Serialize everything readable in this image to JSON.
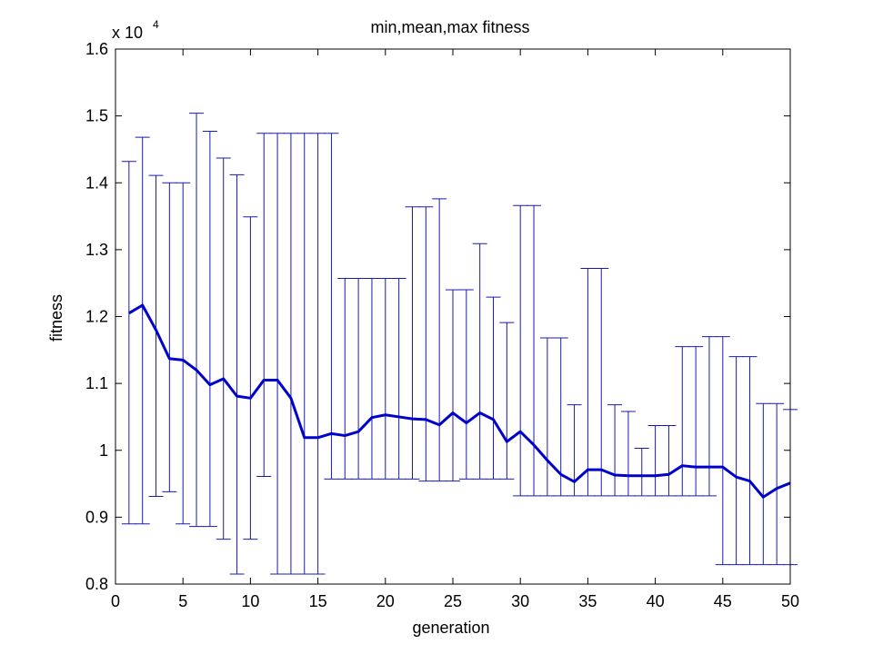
{
  "chart_data": {
    "type": "line",
    "title": "min,mean,max fitness",
    "xlabel": "generation",
    "ylabel": "fitness",
    "y_multiplier_prefix": "x 10",
    "y_multiplier_exponent": "4",
    "xlim": [
      0,
      50
    ],
    "ylim": [
      0.8,
      1.6
    ],
    "grid": false,
    "xticks": [
      "0",
      "5",
      "10",
      "15",
      "20",
      "25",
      "30",
      "35",
      "40",
      "45",
      "50"
    ],
    "yticks": [
      "0.8",
      "0.9",
      "1",
      "1.1",
      "1.2",
      "1.3",
      "1.4",
      "1.5",
      "1.6"
    ],
    "x": [
      1,
      2,
      3,
      4,
      5,
      6,
      7,
      8,
      9,
      10,
      11,
      12,
      13,
      14,
      15,
      16,
      17,
      18,
      19,
      20,
      21,
      22,
      23,
      24,
      25,
      26,
      27,
      28,
      29,
      30,
      31,
      32,
      33,
      34,
      35,
      36,
      37,
      38,
      39,
      40,
      41,
      42,
      43,
      44,
      45,
      46,
      47,
      48,
      49,
      50
    ],
    "series": [
      {
        "name": "mean",
        "values": [
          1.205,
          1.217,
          1.18,
          1.137,
          1.135,
          1.12,
          1.098,
          1.107,
          1.081,
          1.078,
          1.105,
          1.105,
          1.078,
          1.019,
          1.019,
          1.025,
          1.022,
          1.028,
          1.049,
          1.053,
          1.05,
          1.047,
          1.046,
          1.038,
          1.056,
          1.041,
          1.056,
          1.046,
          1.013,
          1.028,
          1.008,
          0.985,
          0.964,
          0.953,
          0.971,
          0.971,
          0.963,
          0.962,
          0.962,
          0.962,
          0.964,
          0.977,
          0.975,
          0.975,
          0.975,
          0.96,
          0.954,
          0.93,
          0.943,
          0.951
        ]
      },
      {
        "name": "max",
        "values": [
          1.432,
          1.468,
          1.411,
          1.4,
          1.4,
          1.504,
          1.477,
          1.437,
          1.412,
          1.349,
          1.474,
          1.474,
          1.474,
          1.474,
          1.474,
          1.474,
          1.257,
          1.257,
          1.257,
          1.257,
          1.257,
          1.364,
          1.364,
          1.376,
          1.24,
          1.24,
          1.309,
          1.229,
          1.191,
          1.366,
          1.366,
          1.168,
          1.168,
          1.068,
          1.272,
          1.272,
          1.068,
          1.058,
          1.003,
          1.037,
          1.037,
          1.155,
          1.155,
          1.17,
          1.17,
          1.14,
          1.14,
          1.07,
          1.07,
          1.061
        ]
      },
      {
        "name": "min",
        "values": [
          0.89,
          0.89,
          0.931,
          0.938,
          0.89,
          0.886,
          0.886,
          0.867,
          0.815,
          0.867,
          0.961,
          0.815,
          0.815,
          0.815,
          0.815,
          0.957,
          0.957,
          0.957,
          0.957,
          0.957,
          0.957,
          0.957,
          0.954,
          0.954,
          0.954,
          0.957,
          0.957,
          0.957,
          0.957,
          0.932,
          0.932,
          0.932,
          0.932,
          0.932,
          0.932,
          0.932,
          0.932,
          0.932,
          0.932,
          0.932,
          0.932,
          0.932,
          0.932,
          0.932,
          0.829,
          0.829,
          0.829,
          0.829,
          0.829,
          0.829
        ]
      }
    ],
    "colors": {
      "line": "#0000cc",
      "errorbar": "#1a1ab3",
      "axes": "#000000"
    }
  }
}
